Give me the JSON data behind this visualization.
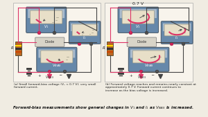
{
  "bg_color": "#f0ece2",
  "title": "Forward-bias measurements show general changes in V₁ and I₁ as V₂⁂⁂ₛ is increased.",
  "caption_a": "(a) Small forward-bias voltage (V₁ < 0.7 V); very small\nforward current.",
  "caption_b": "(b) Forward voltage reaches and remains nearly constant at\napproximately 0.7 V. Forward current continues to\nincrease as the bias voltage is increased.",
  "label_07v": "0.7 V",
  "meter_blue_dark": "#6688aa",
  "meter_blue_light": "#aabbcc",
  "meter_face": "#e8dfc8",
  "meter_arc_color": "#dd3366",
  "wire_pink": "#dd3366",
  "wire_dark": "#444444",
  "diode_fill": "#d8d4c8",
  "resistor_fill": "#bb6622",
  "text_color": "#222222",
  "probe_pink": "#cc2255",
  "probe_dark": "#555555",
  "needle_color": "#444444",
  "border_color": "#888888"
}
